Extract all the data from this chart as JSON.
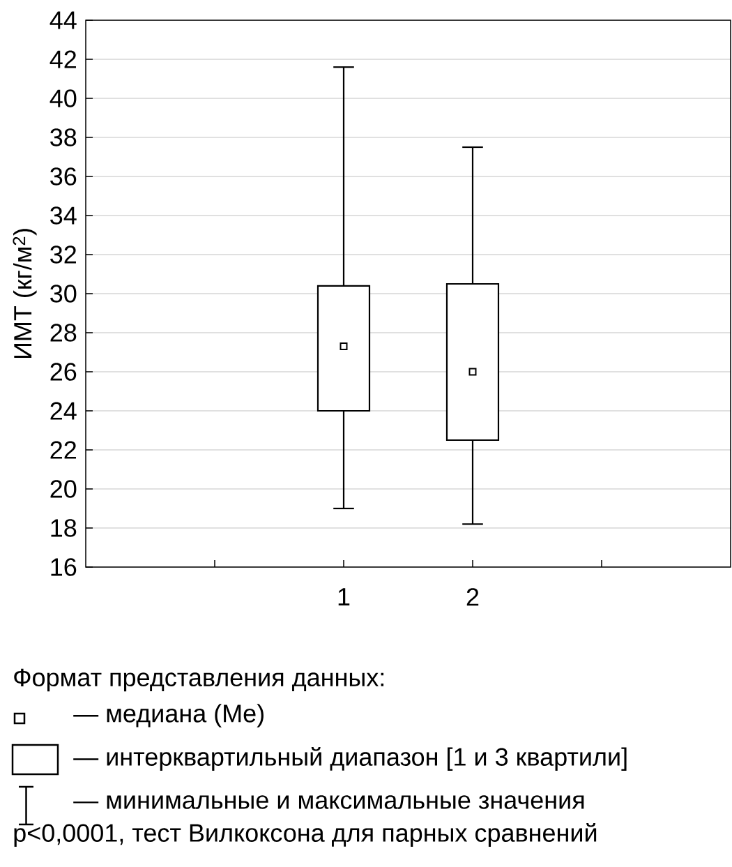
{
  "chart_data": {
    "type": "box",
    "ylabel": "ИМТ (кг/м$^{2}$)",
    "categories": [
      "1",
      "2"
    ],
    "boxes": [
      {
        "low": 19,
        "q1": 24,
        "median": 27.3,
        "q3": 30.4,
        "high": 41.6
      },
      {
        "low": 18.2,
        "q1": 22.5,
        "median": 26,
        "q3": 30.5,
        "high": 37.5
      }
    ],
    "ylim": [
      16,
      44
    ],
    "yticks": [
      16,
      18,
      20,
      22,
      24,
      26,
      28,
      30,
      32,
      34,
      36,
      38,
      40,
      42,
      44
    ],
    "grid": "y",
    "marker": "square",
    "annotations": [
      "Формат представления данных:",
      "— медиана (Me)",
      "— интерквартильный диапазон [1 и 3 квартили]",
      "— минимальные и максимальные значения",
      "p<0,0001, тест Вилкоксона для парных сравнений"
    ]
  }
}
